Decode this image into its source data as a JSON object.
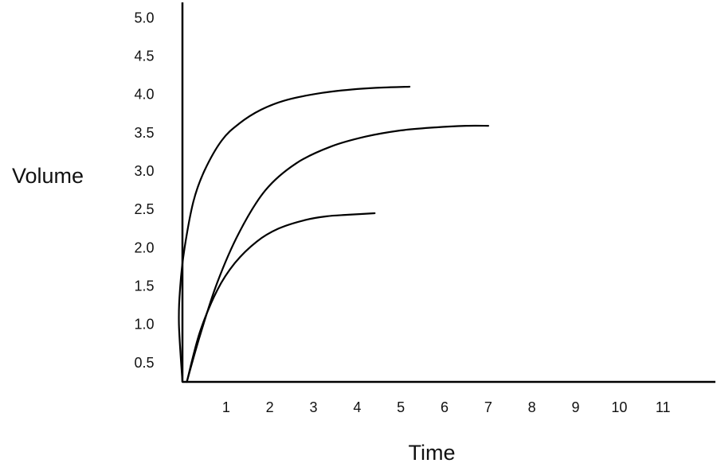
{
  "chart_data": {
    "type": "line",
    "title": "",
    "xlabel": "Time",
    "ylabel": "Volume",
    "xlim": [
      0,
      12.2
    ],
    "ylim": [
      0.25,
      5.2
    ],
    "x_ticks": [
      "1",
      "2",
      "3",
      "4",
      "5",
      "6",
      "7",
      "8",
      "9",
      "10",
      "11"
    ],
    "y_ticks": [
      "0.5",
      "1.0",
      "1.5",
      "2.0",
      "2.5",
      "3.0",
      "3.5",
      "4.0",
      "4.5",
      "5.0"
    ],
    "grid": false,
    "legend": "none",
    "series": [
      {
        "x": [
          0.0,
          -0.08,
          -0.05,
          0.05,
          0.25,
          0.5,
          0.9,
          1.3,
          1.8,
          2.4,
          3.2,
          4.0,
          4.6,
          5.2
        ],
        "y": [
          0.25,
          1.0,
          1.5,
          2.0,
          2.6,
          3.0,
          3.4,
          3.62,
          3.8,
          3.93,
          4.02,
          4.07,
          4.09,
          4.1
        ]
      },
      {
        "x": [
          0.1,
          0.4,
          0.8,
          1.3,
          1.9,
          2.6,
          3.4,
          4.2,
          5.0,
          5.8,
          6.5,
          7.0
        ],
        "y": [
          0.25,
          0.85,
          1.55,
          2.2,
          2.75,
          3.1,
          3.32,
          3.45,
          3.53,
          3.57,
          3.59,
          3.59
        ]
      },
      {
        "x": [
          0.1,
          0.4,
          0.8,
          1.2,
          1.7,
          2.2,
          2.8,
          3.3,
          3.8,
          4.4
        ],
        "y": [
          0.25,
          0.9,
          1.45,
          1.8,
          2.08,
          2.25,
          2.36,
          2.41,
          2.43,
          2.45
        ]
      }
    ]
  }
}
